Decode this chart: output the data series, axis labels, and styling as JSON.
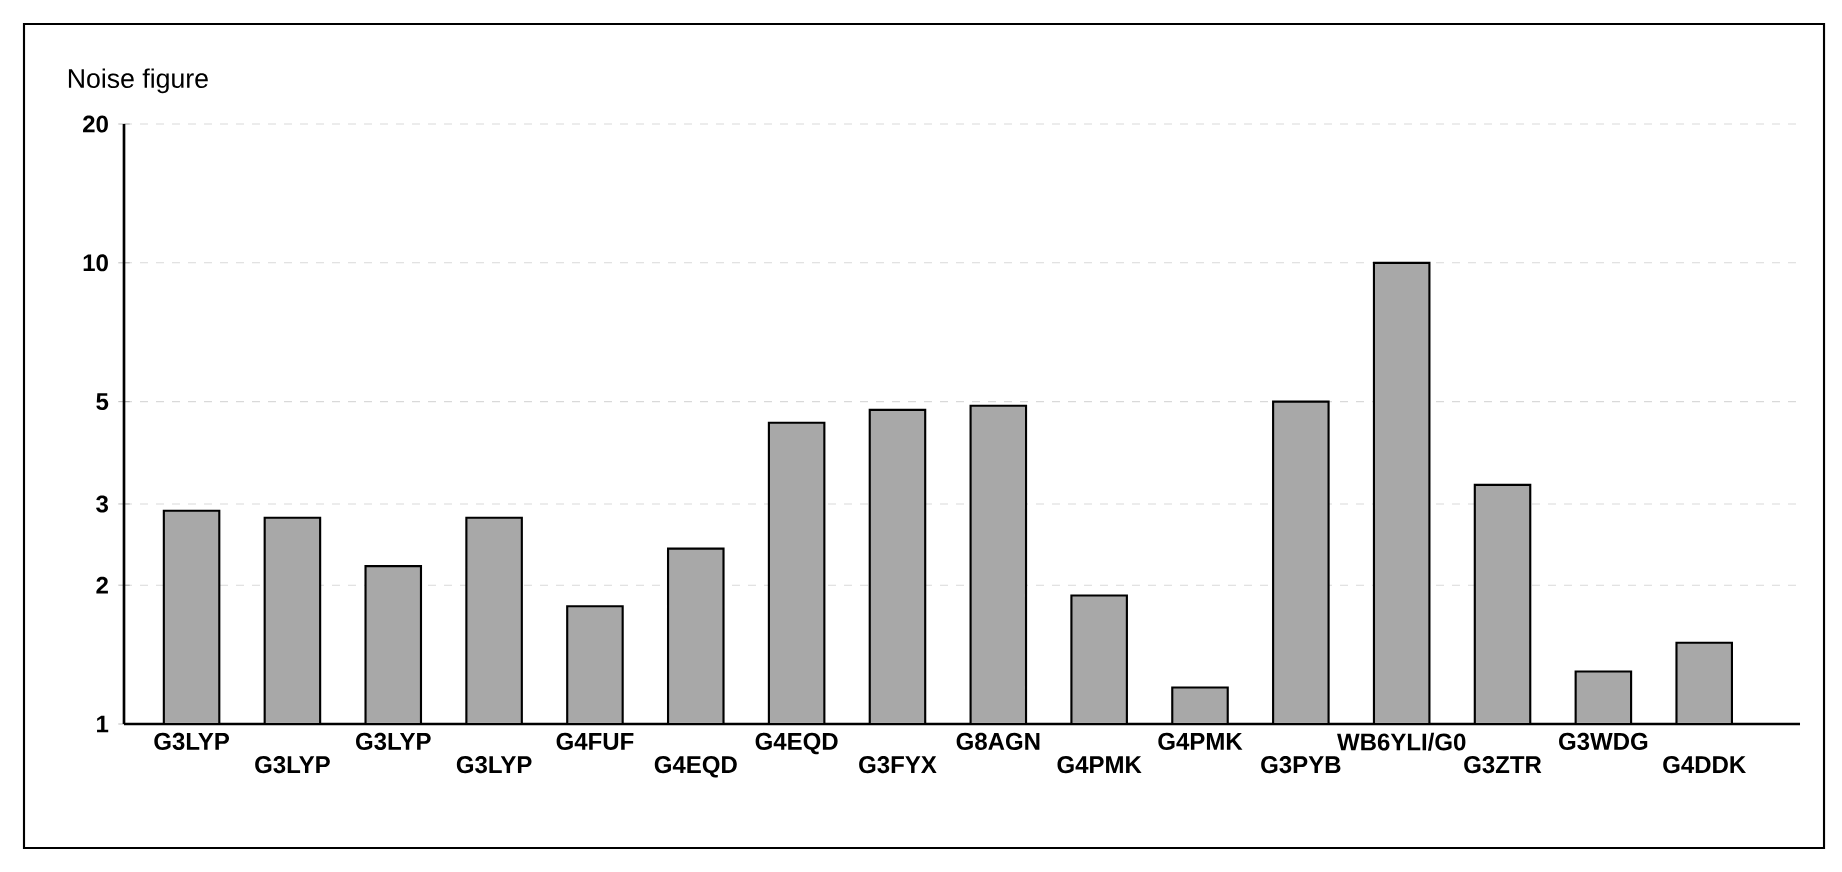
{
  "chart_data": {
    "type": "bar",
    "ylabel": "Noise figure",
    "categories": [
      "G3LYP",
      "G3LYP",
      "G3LYP",
      "G3LYP",
      "G4FUF",
      "G4EQD",
      "G4EQD",
      "G3FYX",
      "G8AGN",
      "G4PMK",
      "G4PMK",
      "G3PYB",
      "WB6YLI/G0",
      "G3ZTR",
      "G3WDG",
      "G4DDK"
    ],
    "values": [
      2.9,
      2.8,
      2.2,
      2.8,
      1.8,
      2.4,
      4.5,
      4.8,
      4.9,
      1.9,
      1.2,
      5.0,
      10,
      3.3,
      1.3,
      1.5
    ],
    "color": "#a8a8a8",
    "log": true,
    "ylim": [
      1,
      20
    ],
    "yticks": [
      1,
      2,
      3,
      5,
      10,
      20
    ],
    "grid": "y"
  }
}
